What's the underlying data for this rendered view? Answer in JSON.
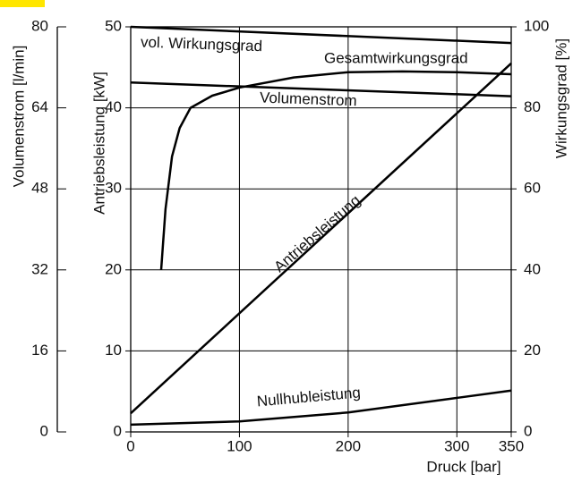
{
  "chart_data": {
    "type": "line",
    "xlabel": "Druck [bar]",
    "ylabel": "Antriebsleistung [kW]",
    "y2label": "Wirkungsgrad [%]",
    "y3label": "Volumenstrom [l/min]",
    "xlim": [
      0,
      350
    ],
    "xticks": [
      0,
      100,
      200,
      300,
      350
    ],
    "ylim": [
      0,
      50
    ],
    "yticks": [
      0,
      10,
      20,
      30,
      40,
      50
    ],
    "y2lim": [
      0,
      100
    ],
    "y2ticks": [
      0,
      20,
      40,
      60,
      80,
      100
    ],
    "y3lim": [
      0,
      80
    ],
    "y3ticks": [
      0,
      16,
      32,
      48,
      64,
      80
    ],
    "grid": true,
    "series": [
      {
        "name": "Antriebsleistung",
        "color": "#000000",
        "x": [
          0,
          350
        ],
        "values": [
          2.3,
          45.5
        ]
      },
      {
        "name": "Nullhubleistung",
        "color": "#000000",
        "x": [
          0,
          100,
          200,
          300,
          350
        ],
        "values": [
          0.9,
          1.3,
          2.4,
          4.2,
          5.1
        ]
      },
      {
        "name": "Volumenstrom",
        "color": "#000000",
        "axis": "y3",
        "x": [
          0,
          350
        ],
        "values": [
          69,
          66.3
        ]
      },
      {
        "name": "vol. Wirkungsgrad",
        "color": "#000000",
        "axis": "y2",
        "x": [
          0,
          350
        ],
        "values": [
          100,
          96
        ]
      },
      {
        "name": "Gesamtwirkungsgrad",
        "color": "#000000",
        "axis": "y2",
        "x": [
          28,
          32,
          38,
          45,
          55,
          75,
          100,
          150,
          200,
          250,
          300,
          350
        ],
        "values": [
          40,
          55,
          68,
          75,
          80,
          83,
          85,
          87.5,
          88.8,
          89,
          88.8,
          88.3
        ]
      }
    ]
  }
}
